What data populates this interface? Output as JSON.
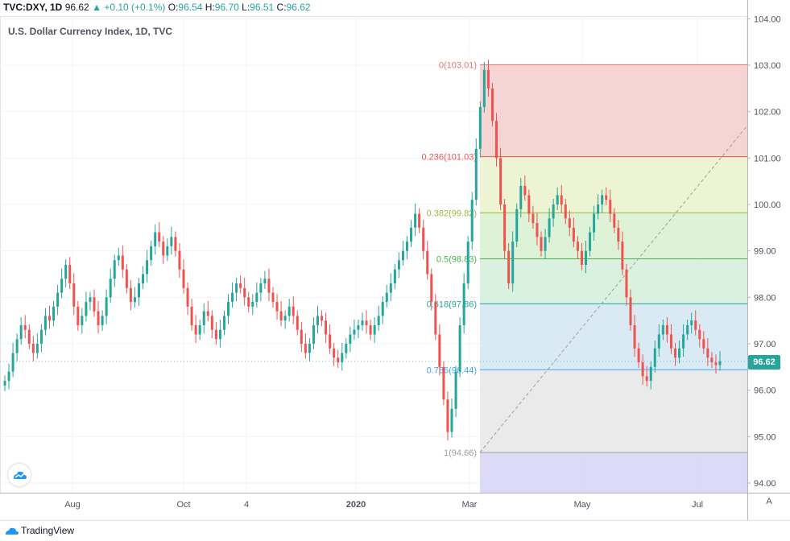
{
  "header": {
    "symbol": "TVC:DXY, 1D",
    "last": "96.62",
    "change": "+0.10 (+0.1%)",
    "o_label": "O:",
    "o": "96.54",
    "h_label": "H:",
    "h": "96.70",
    "l_label": "L:",
    "l": "96.51",
    "c_label": "C:",
    "c": "96.62"
  },
  "footer": {
    "brand": "TradingView"
  },
  "auto_label": "A",
  "chart_data": {
    "type": "candlestick",
    "title": "U.S. Dollar Currency Index, 1D, TVC",
    "y_ticks": [
      "94.00",
      "95.00",
      "96.00",
      "97.00",
      "98.00",
      "99.00",
      "100.00",
      "101.00",
      "102.00",
      "103.00",
      "104.00"
    ],
    "x_ticks": [
      "Aug",
      "Oct",
      "4",
      "2020",
      "Mar",
      "May",
      "Jul"
    ],
    "ylim": [
      93.8,
      104.0
    ],
    "grid": true,
    "last_price": "96.62",
    "fib_levels": [
      {
        "label": "0(103.01)",
        "value": 103.01,
        "color": "#e57373"
      },
      {
        "label": "0.236(101.03)",
        "value": 101.03,
        "color": "#ef5350"
      },
      {
        "label": "0.382(99.82)",
        "value": 99.82,
        "color": "#9cb83c"
      },
      {
        "label": "0.5(98.83)",
        "value": 98.83,
        "color": "#4caf50"
      },
      {
        "label": "0.618(97.86)",
        "value": 97.86,
        "color": "#26a69a"
      },
      {
        "label": "0.786(96.44)",
        "value": 96.44,
        "color": "#42a5f5"
      },
      {
        "label": "1(94.66)",
        "value": 94.66,
        "color": "#9e9e9e"
      }
    ],
    "fib_fills": [
      "#f4cccc",
      "#eaf2cc",
      "#d7f0d0",
      "#d3efdb",
      "#d3e6f3",
      "#e6e6e6",
      "#d6d4f5"
    ],
    "up_color": "#26a69a",
    "down_color": "#ef5350",
    "closes": [
      96.2,
      96.4,
      96.8,
      97.1,
      97.4,
      97.3,
      97.0,
      96.8,
      97.0,
      97.3,
      97.6,
      97.5,
      97.8,
      98.1,
      98.4,
      98.7,
      98.3,
      97.8,
      97.4,
      97.6,
      97.9,
      98.0,
      97.7,
      97.4,
      97.6,
      98.0,
      98.4,
      98.8,
      98.9,
      98.6,
      98.2,
      97.9,
      98.0,
      98.3,
      98.5,
      98.8,
      99.1,
      99.4,
      99.2,
      98.9,
      99.1,
      99.3,
      99.0,
      98.6,
      98.2,
      97.8,
      97.4,
      97.2,
      97.4,
      97.7,
      97.6,
      97.3,
      97.1,
      97.3,
      97.6,
      97.9,
      98.1,
      98.3,
      98.2,
      98.0,
      97.8,
      97.9,
      98.1,
      98.3,
      98.4,
      98.1,
      97.9,
      97.7,
      97.5,
      97.6,
      97.8,
      97.6,
      97.3,
      97.0,
      96.8,
      97.0,
      97.4,
      97.6,
      97.5,
      97.2,
      96.9,
      96.7,
      96.6,
      96.8,
      97.0,
      97.2,
      97.3,
      97.4,
      97.5,
      97.4,
      97.2,
      97.4,
      97.6,
      97.9,
      98.1,
      98.3,
      98.6,
      98.8,
      99.0,
      99.2,
      99.5,
      99.8,
      99.5,
      99.0,
      98.5,
      97.9,
      97.2,
      96.5,
      95.8,
      95.1,
      95.6,
      96.4,
      97.4,
      98.3,
      99.2,
      100.1,
      101.2,
      102.1,
      102.9,
      102.5,
      101.8,
      101.0,
      100.0,
      99.0,
      98.3,
      99.2,
      99.9,
      100.4,
      100.2,
      99.8,
      99.6,
      99.3,
      99.0,
      99.3,
      99.7,
      100.0,
      100.2,
      100.0,
      99.7,
      99.5,
      99.2,
      99.0,
      98.7,
      99.0,
      99.4,
      99.8,
      100.0,
      100.2,
      100.1,
      99.8,
      99.5,
      99.2,
      98.6,
      98.0,
      97.4,
      96.9,
      96.6,
      96.3,
      96.2,
      96.5,
      96.9,
      97.2,
      97.4,
      97.2,
      96.9,
      96.7,
      96.9,
      97.2,
      97.4,
      97.5,
      97.3,
      97.1,
      96.9,
      96.7,
      96.6,
      96.54,
      96.62
    ],
    "x_range_note": "Jun 2019 - Jul 2020 daily"
  }
}
